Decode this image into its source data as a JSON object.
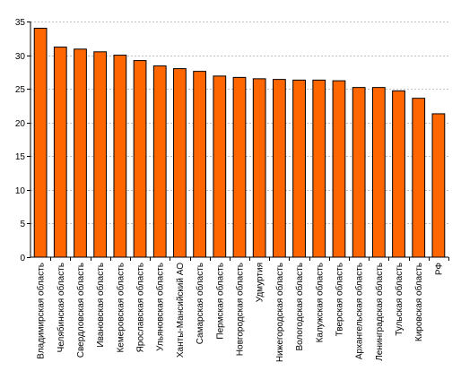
{
  "chart_data": {
    "type": "bar",
    "title": "",
    "xlabel": "",
    "ylabel": "",
    "ylim": [
      0,
      35
    ],
    "yticks": [
      0,
      5,
      10,
      15,
      20,
      25,
      30,
      35
    ],
    "grid": true,
    "legend": "none",
    "categories": [
      "Владимирская область",
      "Челябинская область",
      "Свердловская область",
      "Ивановская область",
      "Кемеровская область",
      "Ярославская область",
      "Ульяновская область",
      "Ханты-Мансийский АО",
      "Самарская область",
      "Пермская область",
      "Новгородская область",
      "Удмуртия",
      "Нижегородская область",
      "Вологодская область",
      "Калужская область",
      "Тверская область",
      "Архангельская область",
      "Ленинградская область",
      "Тульская область",
      "Кировская область",
      "РФ"
    ],
    "values": [
      34.0,
      31.2,
      30.9,
      30.5,
      30.0,
      29.2,
      28.4,
      28.0,
      27.6,
      26.9,
      26.7,
      26.5,
      26.4,
      26.3,
      26.3,
      26.2,
      25.2,
      25.2,
      24.7,
      23.6,
      21.3
    ],
    "colors": {
      "bar_fill": "#ff6600",
      "bar_stroke": "#000000",
      "grid": "#c0c0c0",
      "axis": "#000000"
    }
  }
}
